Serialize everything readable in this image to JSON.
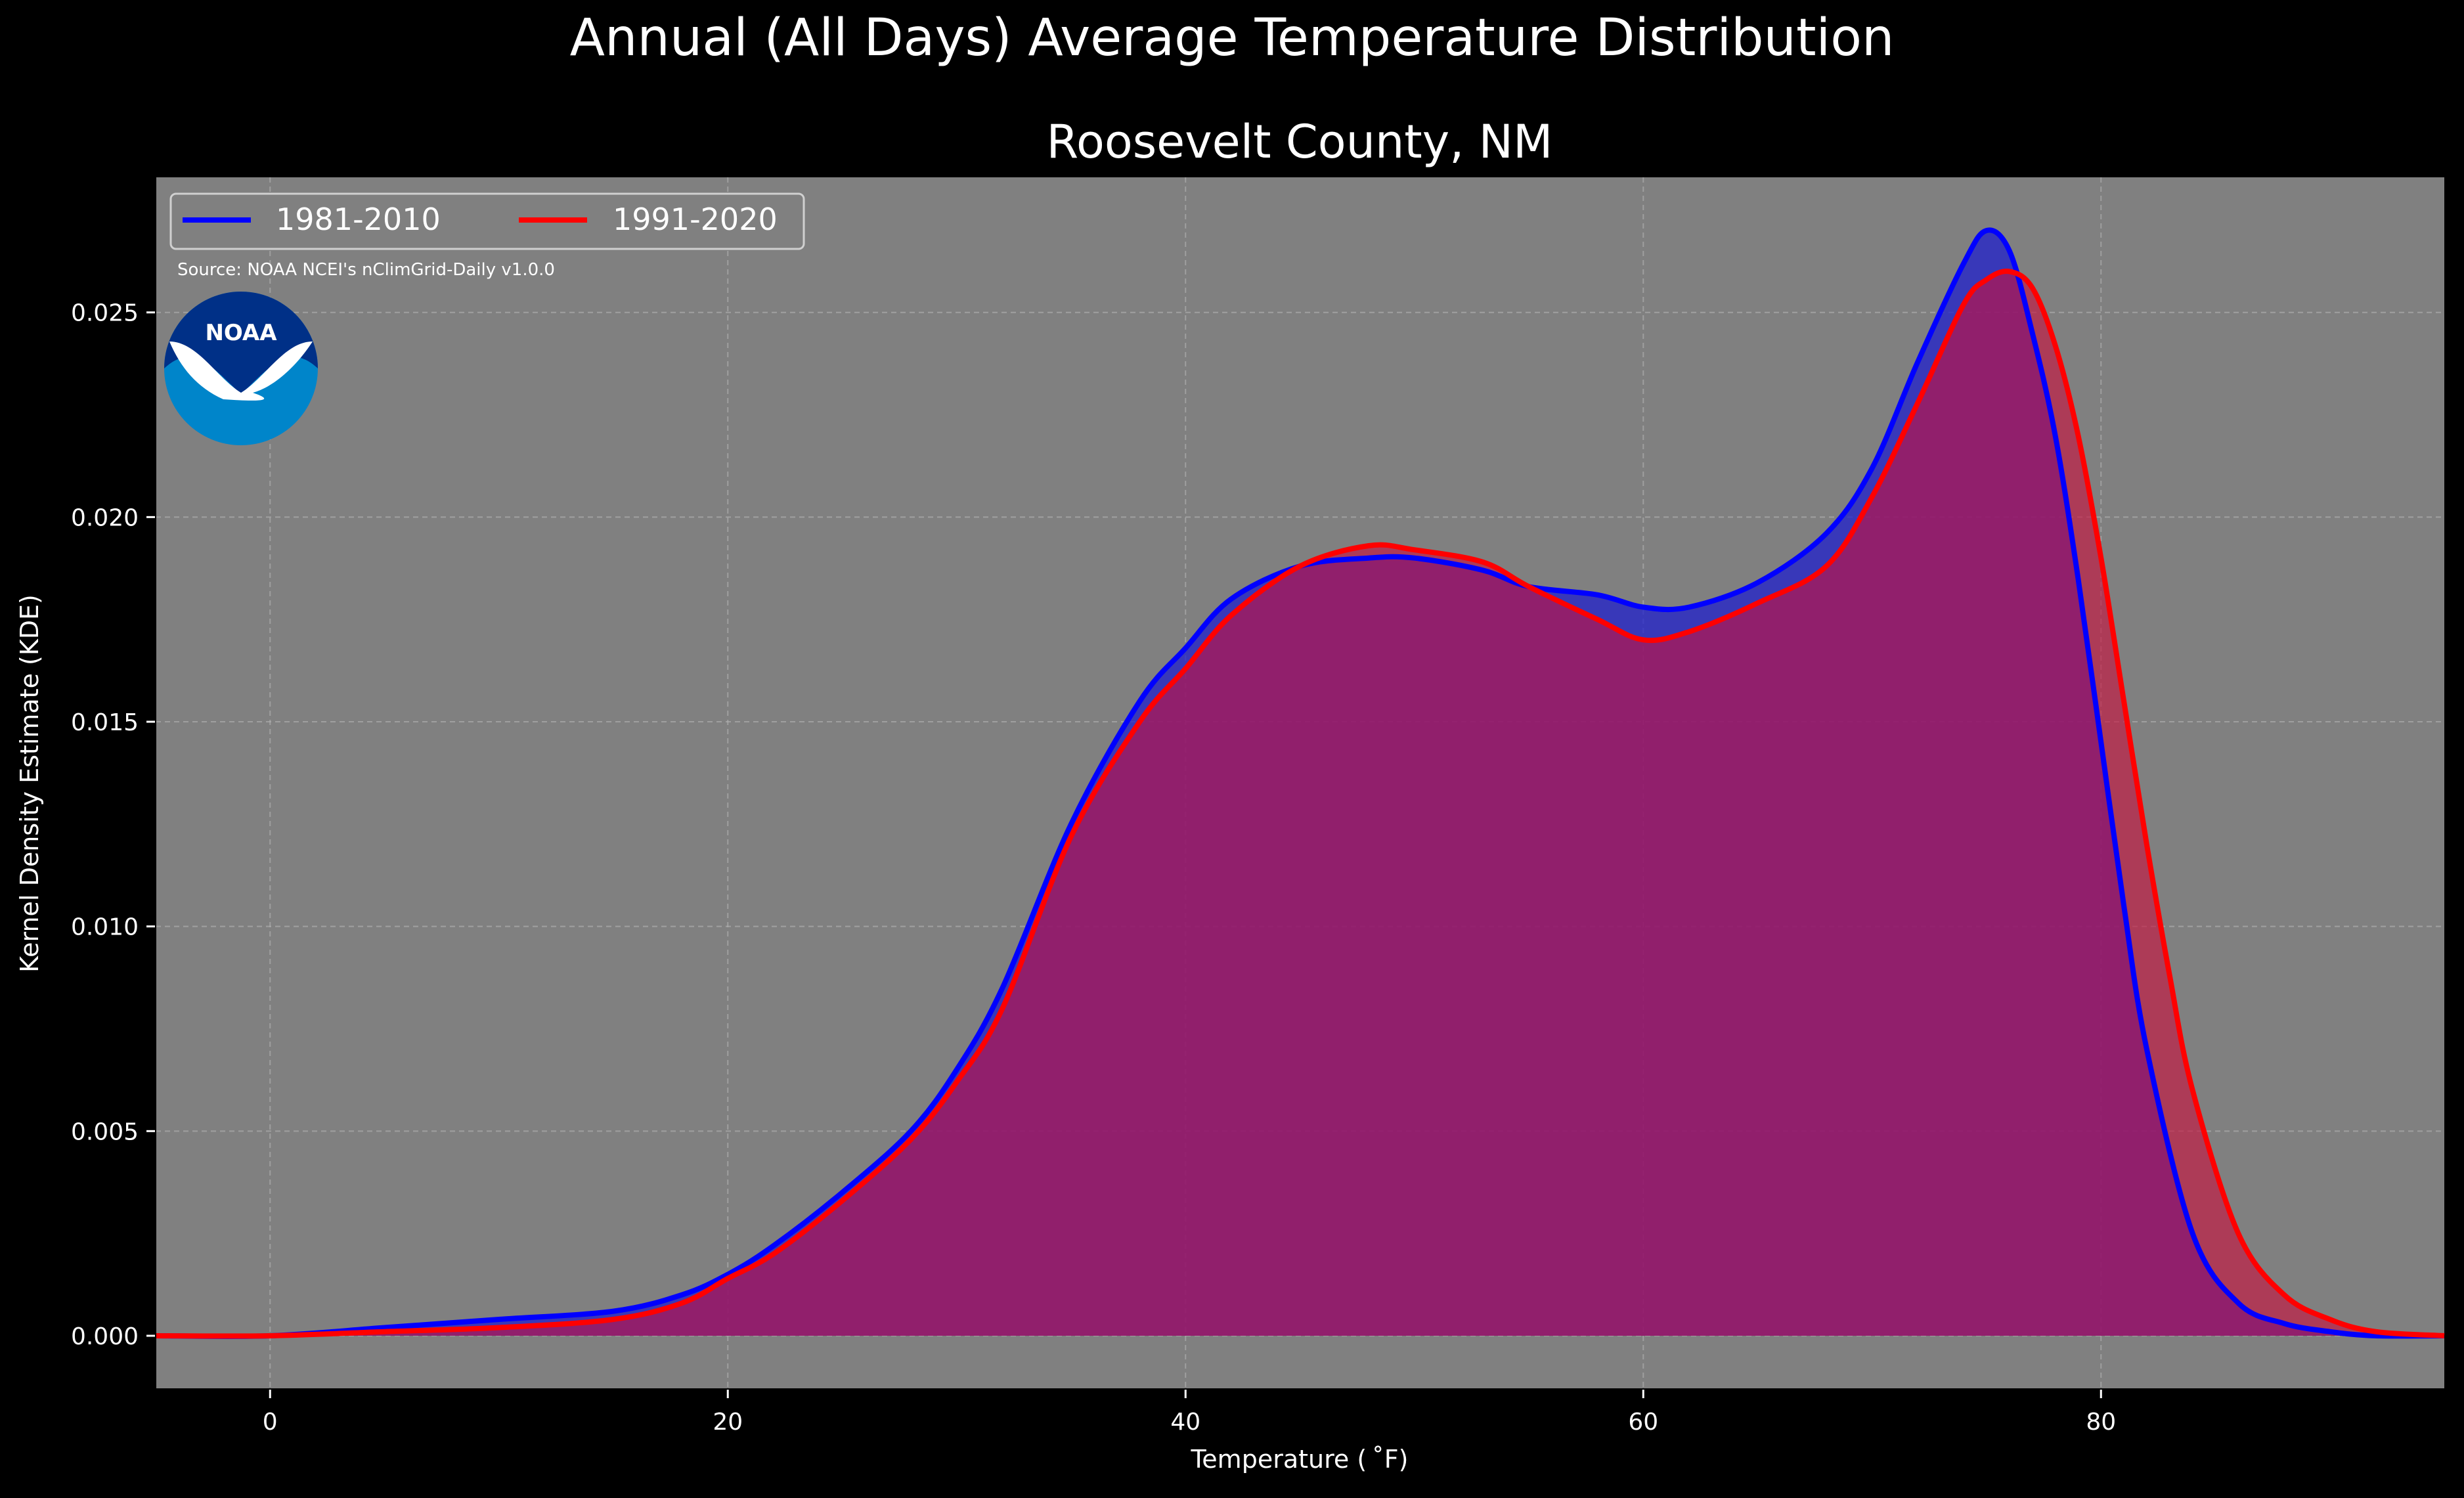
{
  "colors": {
    "background": "#000000",
    "plot_background": "#808080",
    "grid": "#b4b4b4",
    "text": "#ffffff",
    "series_1981": "#0000ff",
    "series_1991": "#ff0000",
    "fill_1981": "#2020cc",
    "fill_1991": "#c8103e",
    "noaa_blue_light": "#0085ca",
    "noaa_blue_dark": "#003087"
  },
  "logo": {
    "name": "noaa-logo-icon",
    "text": "NOAA"
  },
  "chart_data": {
    "type": "area",
    "suptitle": "Annual (All Days) Average Temperature Distribution",
    "title": "Roosevelt County, NM",
    "xlabel": "Temperature ($^\\circ$F)",
    "xlabel_display": "Temperature ( ˚F)",
    "ylabel": "Kernel Density Estimate (KDE)",
    "xlim": [
      -5,
      95
    ],
    "ylim": [
      -0.0013,
      0.0283
    ],
    "x_ticks": [
      0,
      20,
      40,
      60,
      80
    ],
    "x_tick_labels": [
      "0",
      "20",
      "40",
      "60",
      "80"
    ],
    "y_ticks": [
      0.0,
      0.005,
      0.01,
      0.015,
      0.02,
      0.025
    ],
    "y_tick_labels": [
      "0.000",
      "0.005",
      "0.010",
      "0.015",
      "0.020",
      "0.025"
    ],
    "grid": true,
    "legend_position": "top-left",
    "annotation": "Source: NOAA NCEI's nClimGrid-Daily v1.0.0",
    "series": [
      {
        "name": "1981-2010",
        "color": "#0000ff",
        "x": [
          -5,
          0,
          5,
          10,
          15,
          18,
          20,
          22,
          25,
          28,
          30,
          32,
          35,
          38,
          40,
          42,
          45,
          48,
          50,
          53,
          55,
          58,
          60,
          62,
          65,
          68,
          70,
          72,
          74,
          75,
          76,
          77,
          78,
          79,
          80,
          81,
          82,
          84,
          86,
          88,
          90,
          92,
          95
        ],
        "y": [
          0.0,
          0.0,
          0.0002,
          0.0004,
          0.0006,
          0.001,
          0.0015,
          0.0022,
          0.0035,
          0.005,
          0.0065,
          0.0085,
          0.0125,
          0.0155,
          0.0168,
          0.018,
          0.0188,
          0.019,
          0.019,
          0.0187,
          0.0183,
          0.0181,
          0.0178,
          0.0178,
          0.0184,
          0.0196,
          0.0212,
          0.0238,
          0.0262,
          0.027,
          0.0265,
          0.0245,
          0.022,
          0.0185,
          0.0145,
          0.0105,
          0.007,
          0.0025,
          0.0008,
          0.0003,
          0.0001,
          0.0,
          0.0
        ]
      },
      {
        "name": "1991-2020",
        "color": "#ff0000",
        "x": [
          -5,
          0,
          5,
          10,
          15,
          18,
          20,
          22,
          25,
          28,
          30,
          32,
          35,
          38,
          40,
          42,
          45,
          48,
          50,
          53,
          55,
          58,
          60,
          62,
          65,
          68,
          70,
          72,
          74,
          75,
          76,
          77,
          78,
          79,
          80,
          81,
          82,
          83,
          84,
          86,
          88,
          90,
          92,
          95
        ],
        "y": [
          0.0,
          0.0,
          0.0001,
          0.0002,
          0.0004,
          0.0008,
          0.0014,
          0.002,
          0.0033,
          0.0048,
          0.0062,
          0.008,
          0.0122,
          0.015,
          0.0163,
          0.0176,
          0.0188,
          0.0193,
          0.0192,
          0.0189,
          0.0183,
          0.0175,
          0.017,
          0.0172,
          0.0179,
          0.0188,
          0.0205,
          0.0228,
          0.0252,
          0.0258,
          0.026,
          0.0256,
          0.0242,
          0.022,
          0.019,
          0.0155,
          0.012,
          0.0088,
          0.006,
          0.0025,
          0.001,
          0.0004,
          0.0001,
          0.0
        ]
      }
    ]
  }
}
